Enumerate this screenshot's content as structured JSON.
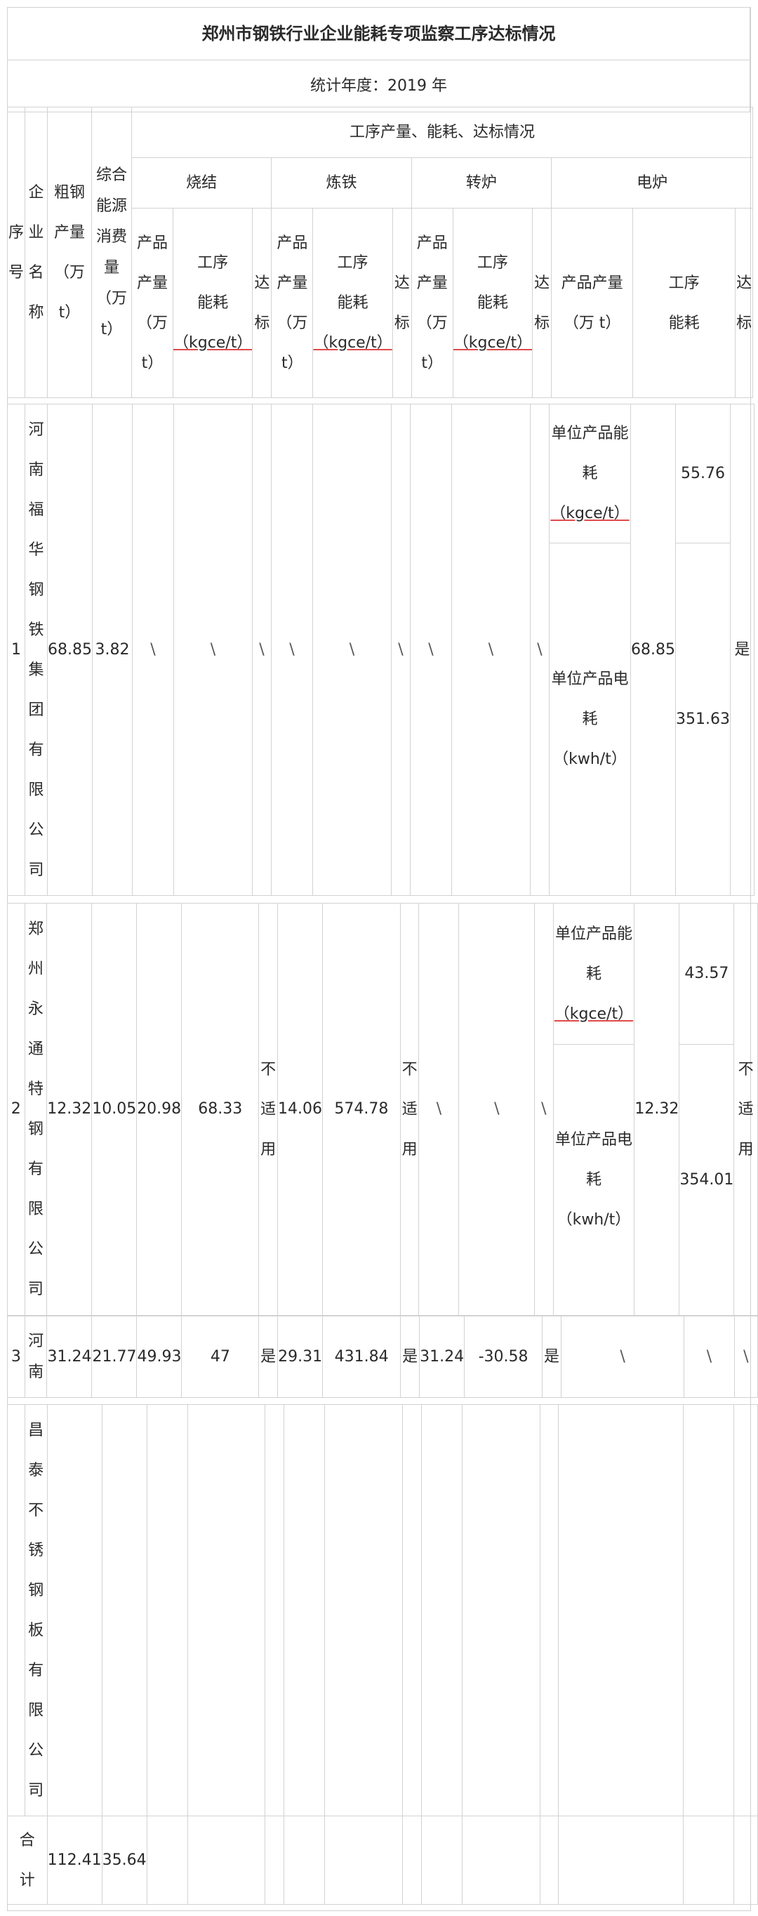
{
  "title": "郑州市钢铁行业企业能耗专项监察工序达标情况",
  "year_label": "统计年度：2019 年",
  "headers": {
    "seq": [
      "序",
      "号"
    ],
    "company": [
      "企",
      "业",
      "名",
      "称"
    ],
    "steel": [
      "粗钢",
      "产量",
      "（万",
      "t）"
    ],
    "energy": [
      "综合",
      "能源",
      "消费",
      "量",
      "（万",
      "t）"
    ],
    "process_group": "工序产量、能耗、达标情况",
    "sinter": "烧结",
    "iron": "炼铁",
    "converter": "转炉",
    "electric": "电炉",
    "output": [
      "产品",
      "产量",
      "（万",
      "t）"
    ],
    "energy_use": [
      "工序",
      "能耗",
      "（kgce/t）"
    ],
    "pass": [
      "达",
      "标"
    ],
    "eaf_output": [
      "产品产量",
      "（万 t）"
    ],
    "eaf_energy": [
      "工序",
      "能耗"
    ],
    "unit_energy": [
      "单位产品能",
      "耗",
      "（kgce/t）"
    ],
    "unit_power": [
      "单位产品电",
      "耗",
      "（kwh/t）"
    ]
  },
  "rows": [
    {
      "seq": "1",
      "company": [
        "河",
        "南",
        "福",
        "华",
        "钢",
        "铁",
        "集",
        "团",
        "有",
        "限",
        "公",
        "司"
      ],
      "steel": "68.85",
      "energy": "3.82",
      "sinter_output": "\\",
      "sinter_energy": "\\",
      "sinter_pass": "\\",
      "iron_output": "\\",
      "iron_energy": "\\",
      "iron_pass": "\\",
      "conv_output": "\\",
      "conv_energy": "\\",
      "conv_pass": "\\",
      "eaf_output": "68.85",
      "eaf_unit_energy": "55.76",
      "eaf_unit_power": "351.63",
      "eaf_pass": "是"
    },
    {
      "seq": "2",
      "company": [
        "郑",
        "州",
        "永",
        "通",
        "特",
        "钢",
        "有",
        "限",
        "公",
        "司"
      ],
      "steel": "12.32",
      "energy": "10.05",
      "sinter_output": "20.98",
      "sinter_energy": "68.33",
      "sinter_pass": [
        "不",
        "适",
        "用"
      ],
      "iron_output": "14.06",
      "iron_energy": "574.78",
      "iron_pass": [
        "不",
        "适",
        "用"
      ],
      "conv_output": "\\",
      "conv_energy": "\\",
      "conv_pass": "\\",
      "eaf_output": "12.32",
      "eaf_unit_energy": "43.57",
      "eaf_unit_power": "354.01",
      "eaf_pass": [
        "不",
        "适",
        "用"
      ]
    },
    {
      "seq": "3",
      "company": [
        "河",
        "南"
      ],
      "company_cont": [
        "昌",
        "泰",
        "不",
        "锈",
        "钢",
        "板",
        "有",
        "限",
        "公",
        "司"
      ],
      "steel": "31.24",
      "energy": "21.77",
      "sinter_output": "49.93",
      "sinter_energy": "47",
      "sinter_pass": "是",
      "iron_output": "29.31",
      "iron_energy": "431.84",
      "iron_pass": "是",
      "conv_output": "31.24",
      "conv_energy": "-30.58",
      "conv_pass": "是",
      "eaf_output": "\\",
      "eaf_energy": "\\",
      "eaf_pass": "\\"
    }
  ],
  "total": {
    "label": [
      "合",
      "计"
    ],
    "steel": "112.41",
    "energy": "35.64"
  }
}
